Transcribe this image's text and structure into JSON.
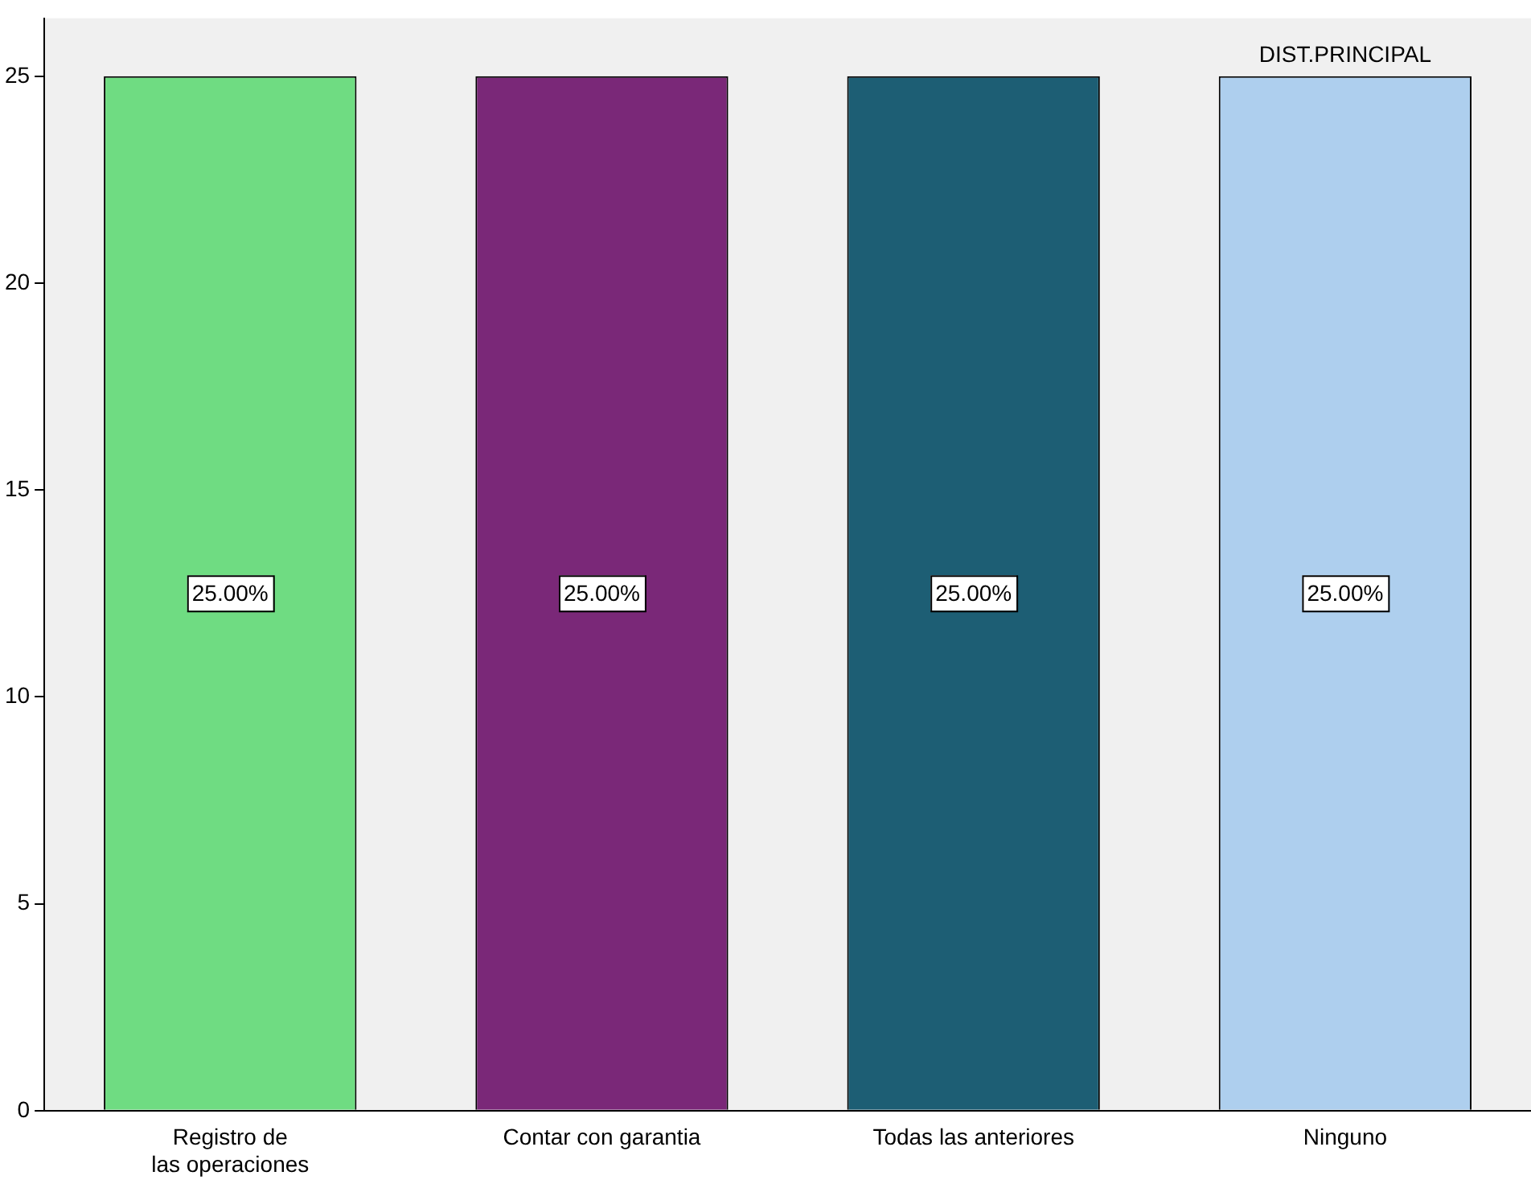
{
  "chart_data": {
    "type": "bar",
    "categories": [
      "Registro de las operaciones",
      "Contar con garantia",
      "Todas las anteriores",
      "Ninguno"
    ],
    "values": [
      25,
      25,
      25,
      25
    ],
    "colors": [
      "#6fdc82",
      "#7a2878",
      "#1d5e74",
      "#aecfee"
    ],
    "value_labels": [
      "25.00%",
      "25.00%",
      "25.00%",
      "25.00%"
    ],
    "annotations": [
      {
        "text": "DIST.PRINCIPAL",
        "x": "Ninguno",
        "y": 25
      }
    ],
    "ylim": [
      0,
      26.4
    ],
    "yticks": [
      0,
      5,
      10,
      15,
      20,
      25
    ],
    "grid": false,
    "legend": false
  }
}
